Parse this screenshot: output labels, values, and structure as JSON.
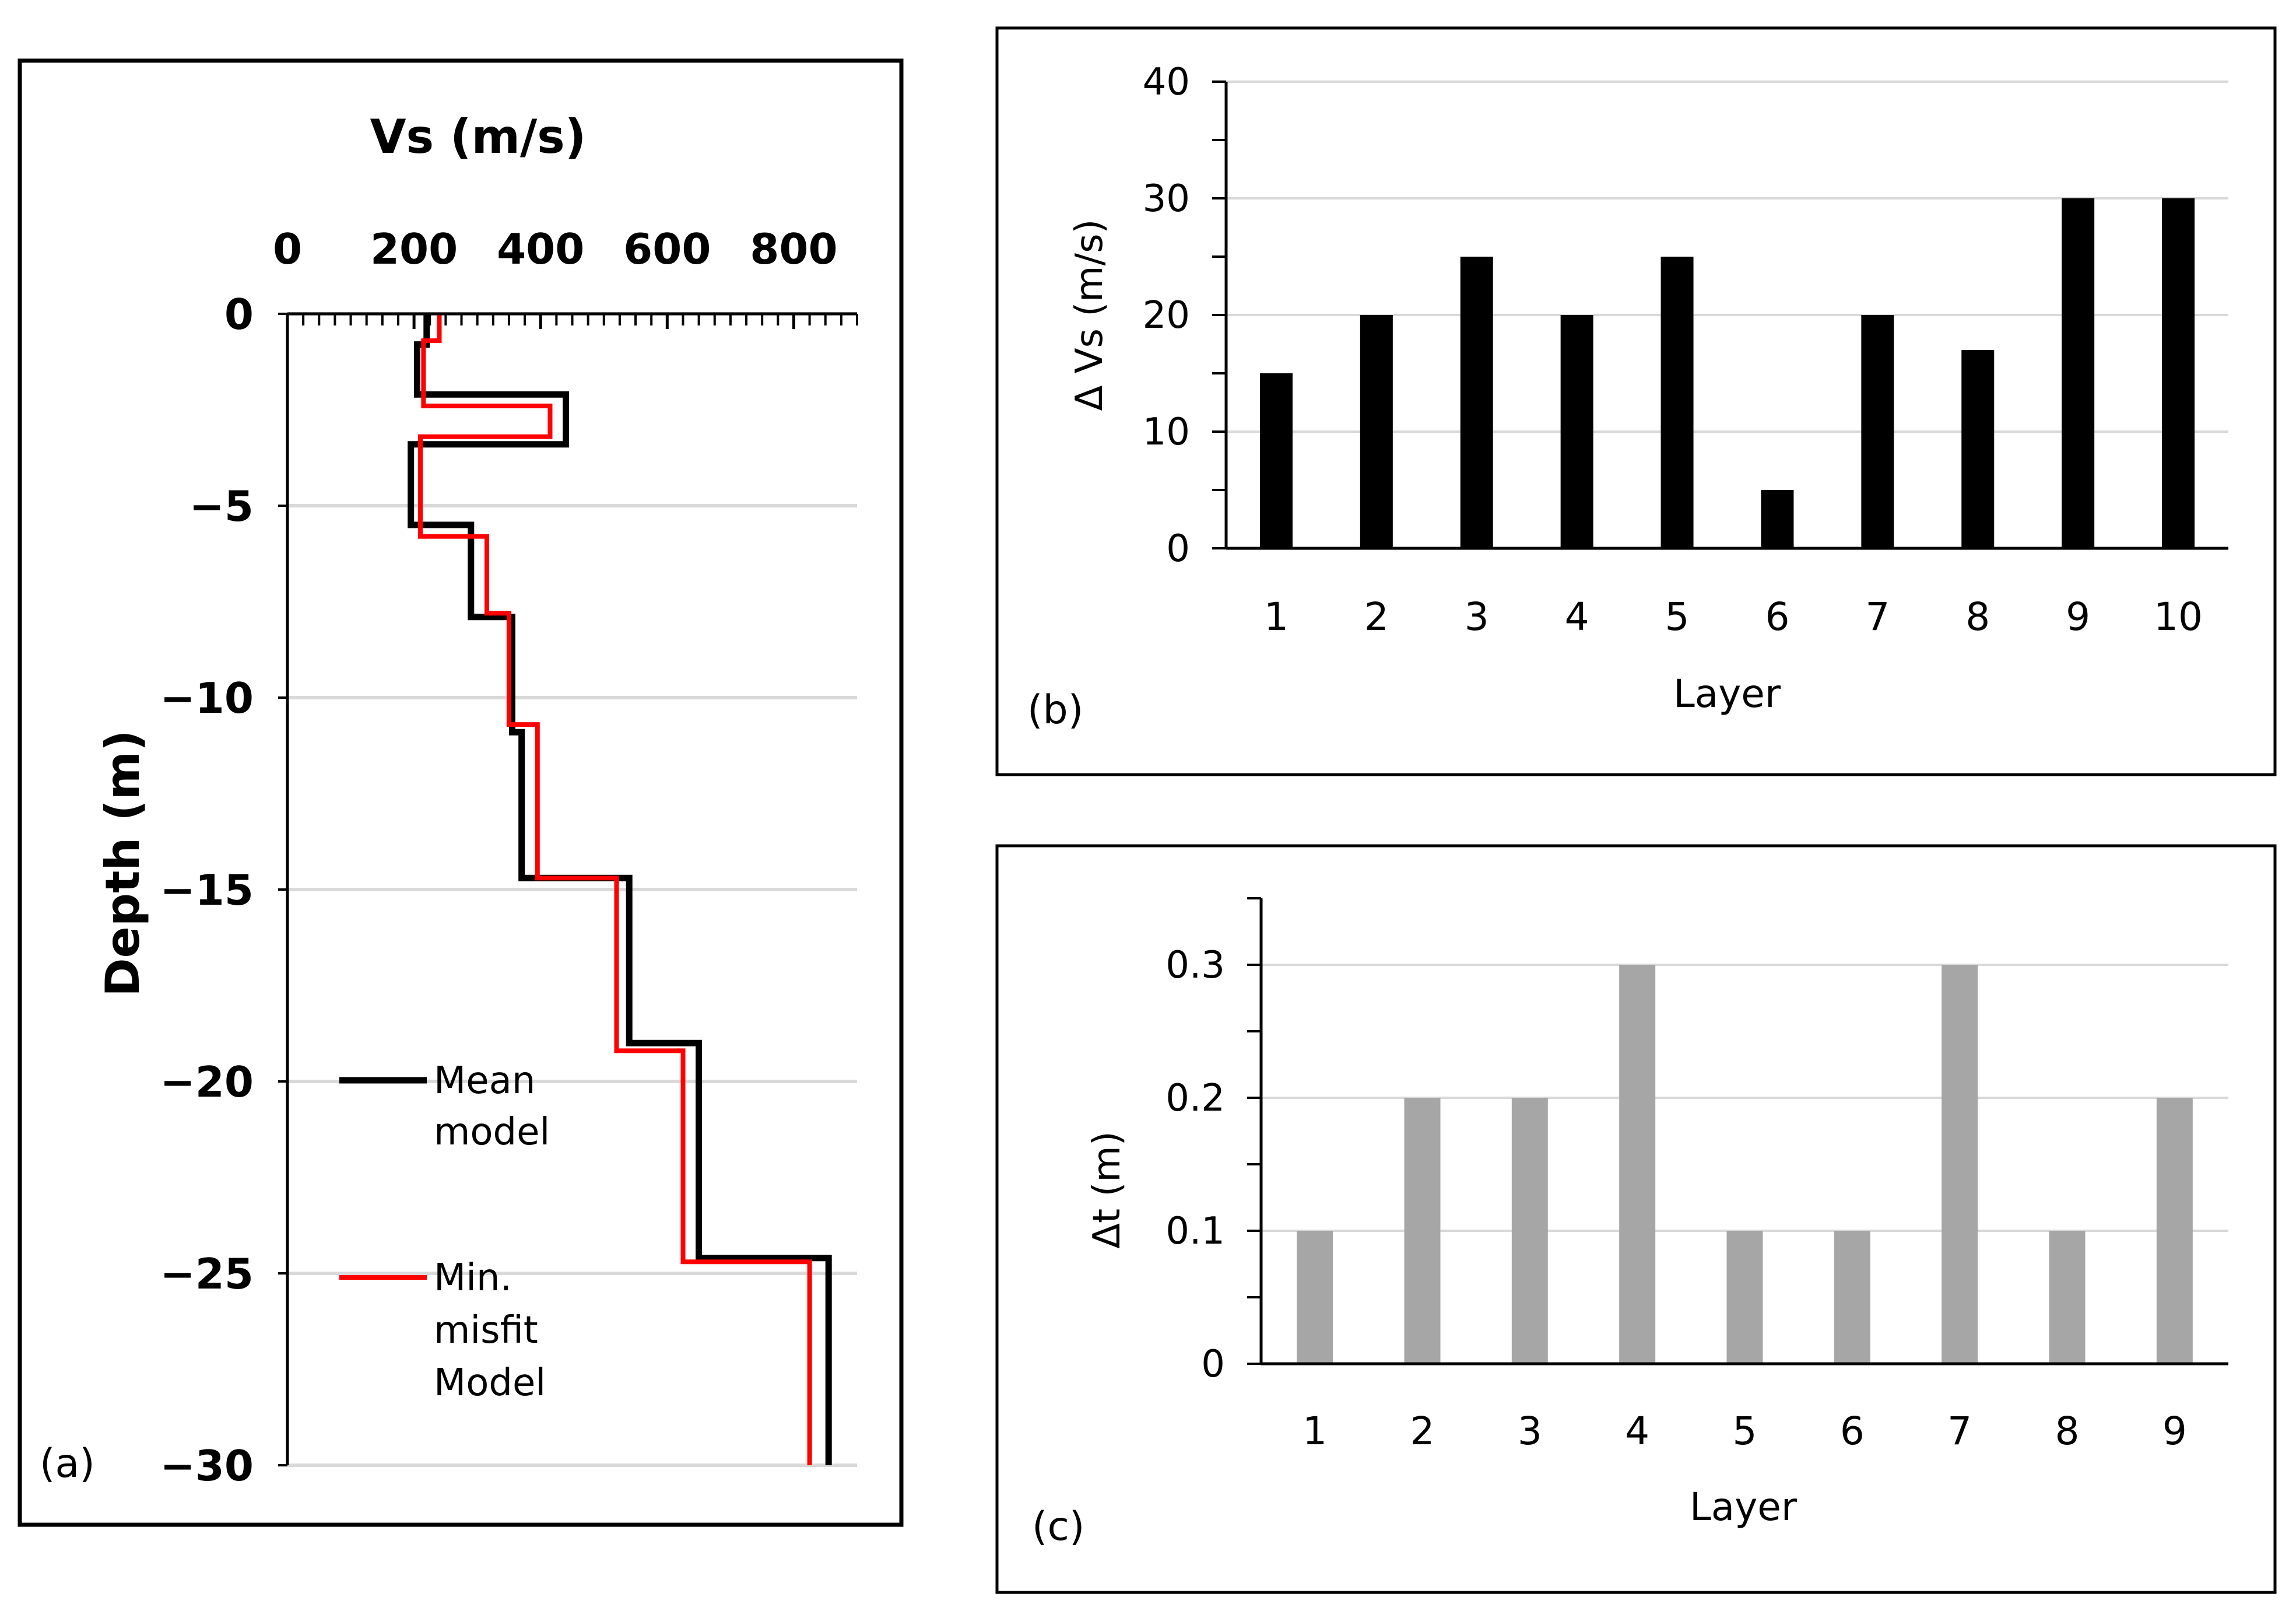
{
  "chart_data": [
    {
      "id": "a",
      "type": "line",
      "panel_label": "(a)",
      "title": "Vs (m/s)",
      "xlabel": "Vs (m/s)",
      "ylabel": "Depth (m)",
      "xlim": [
        0,
        900
      ],
      "ylim": [
        -30,
        0
      ],
      "xticks": [
        "0",
        "200",
        "400",
        "600",
        "800"
      ],
      "yticks": [
        "0",
        "−5",
        "−10",
        "−15",
        "−20",
        "−25",
        "−30"
      ],
      "xtick_values": [
        0,
        200,
        400,
        600,
        800
      ],
      "ytick_values": [
        0,
        -5,
        -10,
        -15,
        -20,
        -25,
        -30
      ],
      "grid": "horizontal",
      "legend": "lower-left",
      "series": [
        {
          "name": "Mean model",
          "legend_lines": [
            "Mean",
            "model"
          ],
          "color": "#000000",
          "points": [
            [
              220,
              0
            ],
            [
              220,
              -0.8
            ],
            [
              205,
              -0.8
            ],
            [
              205,
              -2.1
            ],
            [
              440,
              -2.1
            ],
            [
              440,
              -3.4
            ],
            [
              195,
              -3.4
            ],
            [
              195,
              -5.5
            ],
            [
              290,
              -5.5
            ],
            [
              290,
              -7.9
            ],
            [
              355,
              -7.9
            ],
            [
              355,
              -10.9
            ],
            [
              370,
              -10.9
            ],
            [
              370,
              -14.7
            ],
            [
              540,
              -14.7
            ],
            [
              540,
              -19.0
            ],
            [
              650,
              -19.0
            ],
            [
              650,
              -24.6
            ],
            [
              855,
              -24.6
            ],
            [
              855,
              -30
            ]
          ]
        },
        {
          "name": "Min. misfit Model",
          "legend_lines": [
            "Min.",
            "misfit",
            "Model"
          ],
          "color": "#ff0000",
          "points": [
            [
              240,
              0
            ],
            [
              240,
              -0.7
            ],
            [
              215,
              -0.7
            ],
            [
              215,
              -2.4
            ],
            [
              415,
              -2.4
            ],
            [
              415,
              -3.2
            ],
            [
              210,
              -3.2
            ],
            [
              210,
              -5.8
            ],
            [
              315,
              -5.8
            ],
            [
              315,
              -7.8
            ],
            [
              350,
              -7.8
            ],
            [
              350,
              -10.7
            ],
            [
              395,
              -10.7
            ],
            [
              395,
              -14.7
            ],
            [
              520,
              -14.7
            ],
            [
              520,
              -19.2
            ],
            [
              625,
              -19.2
            ],
            [
              625,
              -24.7
            ],
            [
              825,
              -24.7
            ],
            [
              825,
              -30
            ]
          ]
        }
      ]
    },
    {
      "id": "b",
      "type": "bar",
      "panel_label": "(b)",
      "title": "",
      "xlabel": "Layer",
      "ylabel": "Δ Vs (m/s)",
      "ylim": [
        0,
        40
      ],
      "yticks": [
        "0",
        "10",
        "20",
        "30",
        "40"
      ],
      "ytick_values": [
        0,
        10,
        20,
        30,
        40
      ],
      "grid": "horizontal",
      "bar_color": "#000000",
      "categories": [
        "1",
        "2",
        "3",
        "4",
        "5",
        "6",
        "7",
        "8",
        "9",
        "10"
      ],
      "values": [
        15,
        20,
        25,
        20,
        25,
        5,
        20,
        17,
        30,
        30
      ]
    },
    {
      "id": "c",
      "type": "bar",
      "panel_label": "(c)",
      "title": "",
      "xlabel": "Layer",
      "ylabel": "Δt (m)",
      "ylim": [
        0,
        0.35
      ],
      "yticks": [
        "0",
        "0.1",
        "0.2",
        "0.3"
      ],
      "ytick_values": [
        0,
        0.1,
        0.2,
        0.3
      ],
      "grid": "horizontal",
      "bar_color": "#a6a6a6",
      "categories": [
        "1",
        "2",
        "3",
        "4",
        "5",
        "6",
        "7",
        "8",
        "9"
      ],
      "values": [
        0.1,
        0.2,
        0.2,
        0.3,
        0.1,
        0.1,
        0.3,
        0.1,
        0.2
      ]
    }
  ]
}
